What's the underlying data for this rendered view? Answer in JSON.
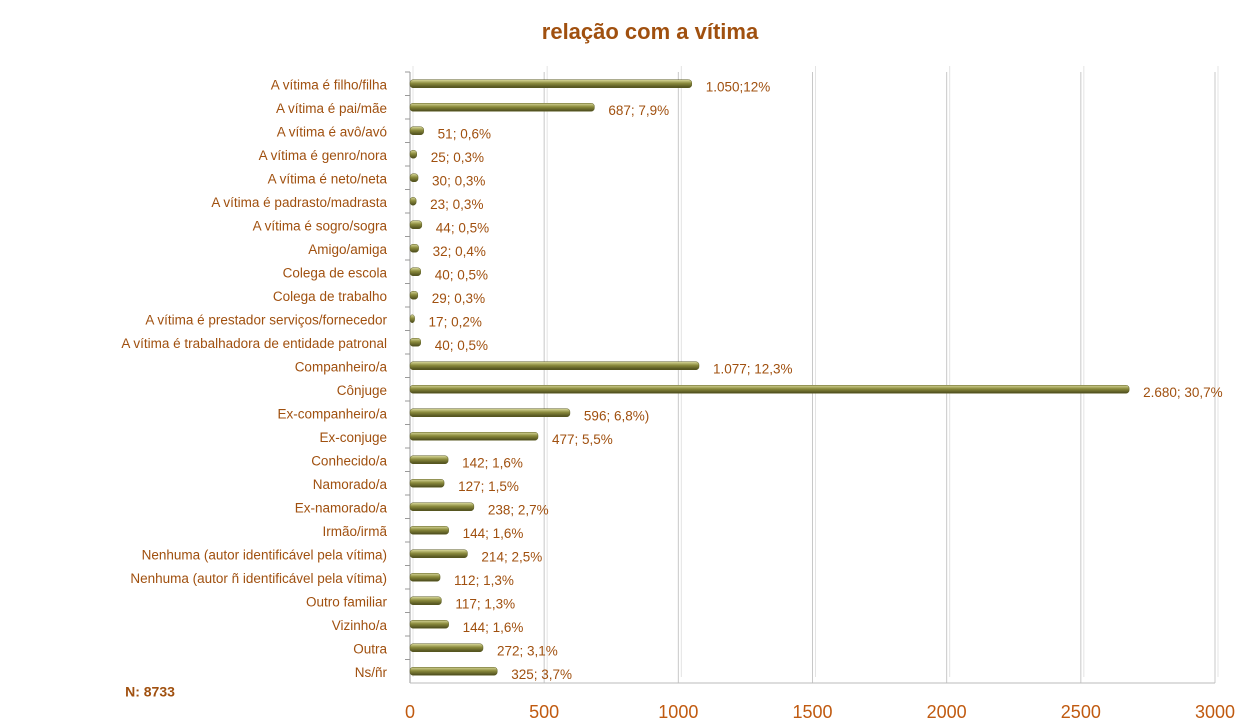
{
  "chart_data": {
    "type": "barh",
    "title": "relação com a vítima",
    "annotation": "N: 8733",
    "categories": [
      "A vítima é filho/filha",
      "A vítima é pai/mãe",
      "A vítima é avô/avó",
      "A vítima é genro/nora",
      "A vítima é neto/neta",
      "A vítima é padrasto/madrasta",
      "A vítima é sogro/sogra",
      "Amigo/amiga",
      "Colega de escola",
      "Colega de trabalho",
      "A vítima é prestador serviços/fornecedor",
      "A vítima é trabalhadora de entidade patronal",
      "Companheiro/a",
      "Cônjuge",
      "Ex-companheiro/a",
      "Ex-conjuge",
      "Conhecido/a",
      "Namorado/a",
      "Ex-namorado/a",
      "Irmão/irmã",
      "Nenhuma (autor identificável pela vítima)",
      "Nenhuma (autor ñ identificável pela vítima)",
      "Outro familiar",
      "Vizinho/a",
      "Outra",
      "Ns/ñr"
    ],
    "values": [
      1050,
      687,
      51,
      25,
      30,
      23,
      44,
      32,
      40,
      29,
      17,
      40,
      1077,
      2680,
      596,
      477,
      142,
      127,
      238,
      144,
      214,
      112,
      117,
      144,
      272,
      325
    ],
    "value_labels": [
      "1.050;12%",
      "687; 7,9%",
      "51; 0,6%",
      "25; 0,3%",
      "30; 0,3%",
      "23; 0,3%",
      "44; 0,5%",
      "32; 0,4%",
      "40; 0,5%",
      "29; 0,3%",
      "17; 0,2%",
      "40; 0,5%",
      "1.077; 12,3%",
      "2.680; 30,7%",
      "596; 6,8%)",
      "477; 5,5%",
      "142; 1,6%",
      "127; 1,5%",
      "238; 2,7%",
      "144; 1,6%",
      "214; 2,5%",
      "112; 1,3%",
      "117; 1,3%",
      "144; 1,6%",
      "272; 3,1%",
      "325; 3,7%"
    ],
    "color": "#8a8a3c",
    "xlim": [
      0,
      3000
    ],
    "xticks": [
      0,
      500,
      1000,
      1500,
      2000,
      2500,
      3000
    ],
    "grid": true
  }
}
